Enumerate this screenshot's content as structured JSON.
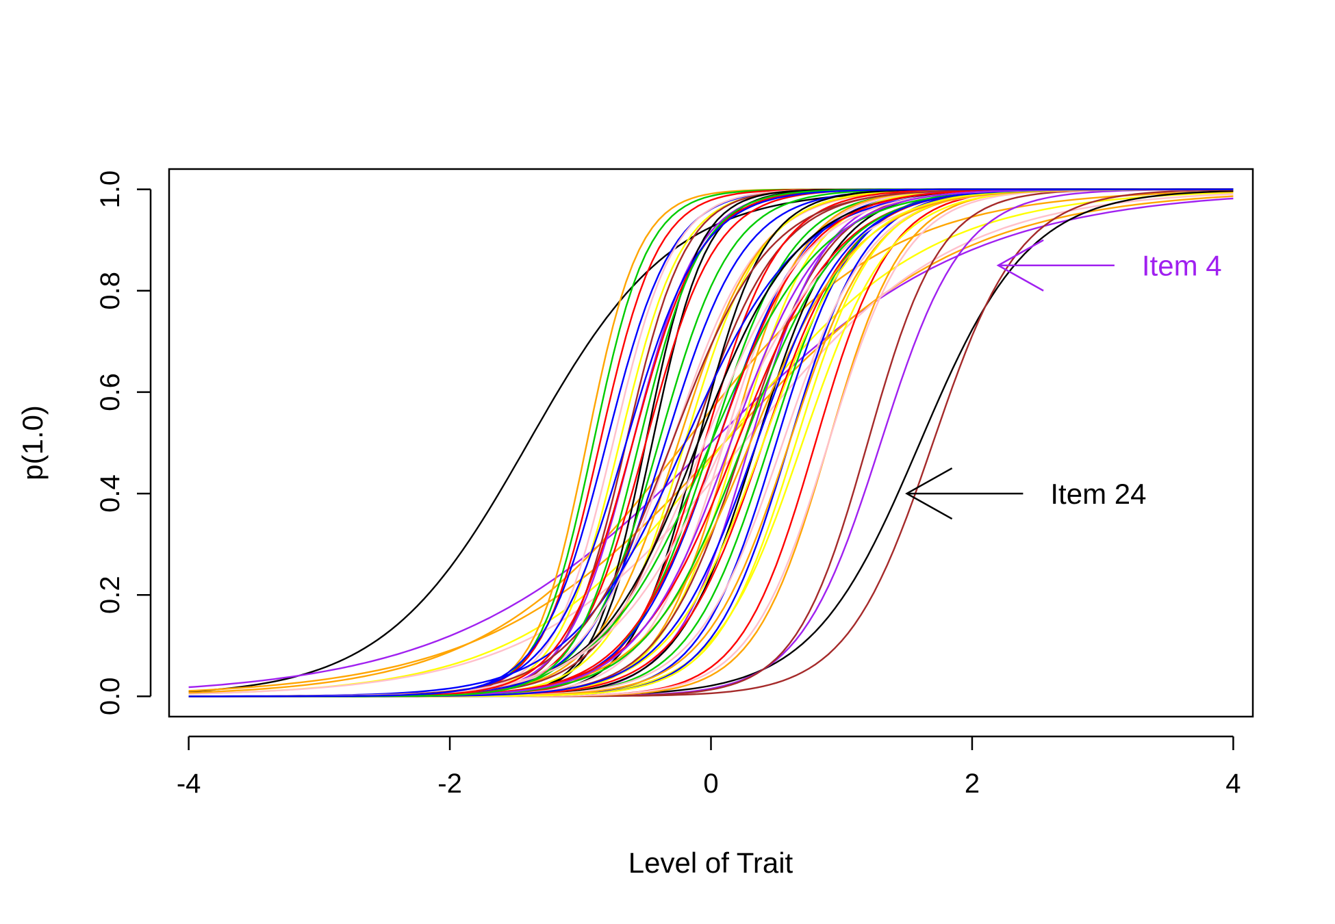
{
  "chart_data": {
    "type": "line",
    "title": "",
    "xlabel": "Level of Trait",
    "ylabel": "p(1.0)",
    "xlim": [
      -4.15,
      4.15
    ],
    "ylim": [
      -0.04,
      1.04
    ],
    "xticks": [
      -4,
      -2,
      0,
      2,
      4
    ],
    "xtick_labels": [
      "-4",
      "-2",
      "0",
      "2",
      "4"
    ],
    "yticks": [
      0.0,
      0.2,
      0.4,
      0.6,
      0.8,
      1.0
    ],
    "ytick_labels": [
      "0.0",
      "0.2",
      "0.4",
      "0.6",
      "0.8",
      "1.0"
    ],
    "grid": false,
    "legend": "none",
    "palette": [
      "#000000",
      "#ff0000",
      "#00cc00",
      "#0000ff",
      "#ffa500",
      "#a52a2a",
      "#ffc0cb",
      "#ffff00",
      "#a020f0"
    ],
    "curve_model": "logistic p = 1 / (1 + exp(-a * (x - b)))",
    "series": [
      {
        "color": "#000000",
        "a": 1.8,
        "b": -1.4
      },
      {
        "color": "#a020f0",
        "a": 1.0,
        "b": 0.0
      },
      {
        "color": "#ffa500",
        "a": 1.1,
        "b": 0.1
      },
      {
        "color": "#ffff00",
        "a": 1.3,
        "b": 0.1
      },
      {
        "color": "#ffc0cb",
        "a": 1.25,
        "b": 0.25
      },
      {
        "color": "#ffa500",
        "a": 1.3,
        "b": -0.2
      },
      {
        "color": "#000000",
        "a": 2.4,
        "b": 1.6
      },
      {
        "color": "#a52a2a",
        "a": 3.0,
        "b": 1.7
      },
      {
        "color": "#a020f0",
        "a": 3.2,
        "b": 1.3
      },
      {
        "color": "#a52a2a",
        "a": 3.6,
        "b": 1.2
      },
      {
        "color": "#ffa500",
        "a": 3.5,
        "b": 0.9
      },
      {
        "color": "#ff0000",
        "a": 3.5,
        "b": 0.8
      },
      {
        "color": "#ffc0cb",
        "a": 3.3,
        "b": 0.9
      },
      {
        "color": "#ffff00",
        "a": 3.0,
        "b": 0.7
      },
      {
        "color": "#0000ff",
        "a": 3.4,
        "b": 0.6
      },
      {
        "color": "#ffa500",
        "a": 5.0,
        "b": -0.95
      },
      {
        "color": "#00cc00",
        "a": 4.8,
        "b": -0.9
      },
      {
        "color": "#ff0000",
        "a": 4.5,
        "b": -0.85
      },
      {
        "color": "#0000ff",
        "a": 4.0,
        "b": -0.8
      },
      {
        "color": "#ffc0cb",
        "a": 4.3,
        "b": -0.75
      },
      {
        "color": "#ffff00",
        "a": 4.2,
        "b": -0.7
      },
      {
        "color": "#a52a2a",
        "a": 4.4,
        "b": -0.65
      },
      {
        "color": "#a020f0",
        "a": 4.0,
        "b": -0.6
      },
      {
        "color": "#000000",
        "a": 5.0,
        "b": -0.5
      },
      {
        "color": "#000000",
        "a": 4.8,
        "b": -0.45
      },
      {
        "color": "#ff0000",
        "a": 3.8,
        "b": -0.5
      },
      {
        "color": "#00cc00",
        "a": 3.6,
        "b": -0.4
      },
      {
        "color": "#0000ff",
        "a": 3.3,
        "b": -0.35
      },
      {
        "color": "#ffc0cb",
        "a": 3.0,
        "b": -0.3
      },
      {
        "color": "#ffa500",
        "a": 3.2,
        "b": -0.25
      },
      {
        "color": "#ffff00",
        "a": 3.4,
        "b": -0.2
      },
      {
        "color": "#a52a2a",
        "a": 3.0,
        "b": -0.15
      },
      {
        "color": "#000000",
        "a": 4.0,
        "b": -0.1
      },
      {
        "color": "#ff0000",
        "a": 3.5,
        "b": -0.05
      },
      {
        "color": "#00cc00",
        "a": 3.2,
        "b": 0.0
      },
      {
        "color": "#0000ff",
        "a": 3.0,
        "b": 0.05
      },
      {
        "color": "#ffc0cb",
        "a": 3.3,
        "b": 0.1
      },
      {
        "color": "#ffa500",
        "a": 3.6,
        "b": 0.15
      },
      {
        "color": "#ffff00",
        "a": 3.4,
        "b": 0.2
      },
      {
        "color": "#a52a2a",
        "a": 3.1,
        "b": 0.25
      },
      {
        "color": "#a020f0",
        "a": 3.5,
        "b": 0.3
      },
      {
        "color": "#000000",
        "a": 3.3,
        "b": 0.35
      },
      {
        "color": "#ff0000",
        "a": 3.0,
        "b": 0.4
      },
      {
        "color": "#00cc00",
        "a": 3.2,
        "b": 0.45
      },
      {
        "color": "#0000ff",
        "a": 3.4,
        "b": 0.5
      },
      {
        "color": "#ffc0cb",
        "a": 3.0,
        "b": 0.55
      },
      {
        "color": "#ffa500",
        "a": 3.1,
        "b": 0.6
      },
      {
        "color": "#ffff00",
        "a": 3.3,
        "b": 0.65
      },
      {
        "color": "#ff0000",
        "a": 2.6,
        "b": 0.2
      },
      {
        "color": "#00cc00",
        "a": 2.4,
        "b": 0.0
      },
      {
        "color": "#0000ff",
        "a": 2.3,
        "b": -0.2
      },
      {
        "color": "#ffc0cb",
        "a": 2.2,
        "b": 0.1
      },
      {
        "color": "#ffa500",
        "a": 2.5,
        "b": 0.3
      },
      {
        "color": "#ffff00",
        "a": 2.8,
        "b": 0.4
      },
      {
        "color": "#a52a2a",
        "a": 2.7,
        "b": -0.3
      },
      {
        "color": "#000000",
        "a": 2.6,
        "b": -0.1
      },
      {
        "color": "#ff0000",
        "a": 2.9,
        "b": 0.05
      },
      {
        "color": "#00cc00",
        "a": 2.7,
        "b": 0.25
      },
      {
        "color": "#0000ff",
        "a": 2.9,
        "b": 0.35
      },
      {
        "color": "#ffc0cb",
        "a": 2.5,
        "b": -0.05
      },
      {
        "color": "#a020f0",
        "a": 2.8,
        "b": 0.15
      },
      {
        "color": "#ff0000",
        "a": 3.8,
        "b": -0.6
      },
      {
        "color": "#00cc00",
        "a": 4.2,
        "b": -0.55
      },
      {
        "color": "#0000ff",
        "a": 3.5,
        "b": -0.65
      }
    ],
    "annotations": [
      {
        "text": "Item 4",
        "color": "#a020f0",
        "arrow_to": [
          2.2,
          0.85
        ],
        "text_at": [
          3.3,
          0.85
        ],
        "arrow_dir": "left"
      },
      {
        "text": "Item 24",
        "color": "#000000",
        "arrow_to": [
          1.5,
          0.4
        ],
        "text_at": [
          2.6,
          0.4
        ],
        "arrow_dir": "left"
      }
    ]
  }
}
